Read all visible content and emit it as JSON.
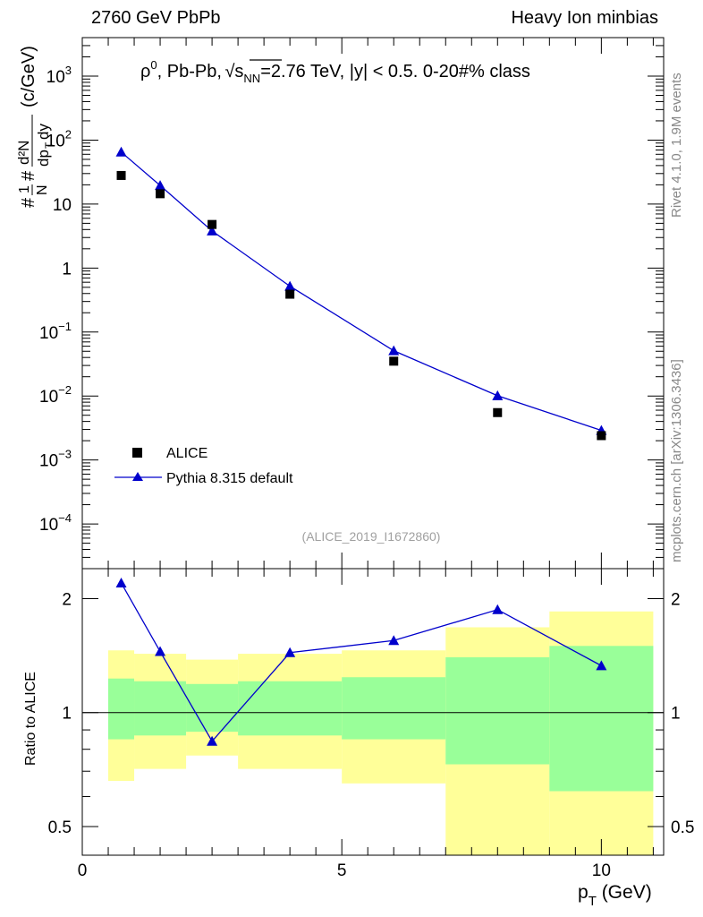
{
  "header": {
    "left": "2760 GeV PbPb",
    "right": "Heavy Ion minbias"
  },
  "side": {
    "rivet": "Rivet 4.1.0,  1.9M events",
    "mcplots": "mcplots.cern.ch [arXiv:1306.3436]"
  },
  "plot": {
    "title_pre": "ρ",
    "title_sup": "0",
    "title_mid": ", Pb-Pb, ",
    "title_root": "s",
    "title_sub": "NN",
    "title_post": "=2.76 TeV, |y| < 0.5. 0-20#% class",
    "ylabel": "#1/N # d²N/dp_T dy (c/GeV)",
    "ylabel_a": "#",
    "ylabel_b": "1",
    "ylabel_c": "N",
    "ylabel_d": "#",
    "ylabel_e": "d²N",
    "ylabel_f": "dp",
    "ylabel_g": "T",
    "ylabel_h": "dy",
    "ylabel_i": "(c/GeV)",
    "analysis_id": "(ALICE_2019_I1672860)",
    "ratio_ylabel": "Ratio to ALICE",
    "xlabel_main": "p",
    "xlabel_sub": "T",
    "xlabel_unit": " (GeV)"
  },
  "legend": {
    "data_label": "ALICE",
    "mc_label": "Pythia 8.315 default"
  },
  "colors": {
    "data": "#000000",
    "mc": "#0000cc",
    "band_inner": "#99ff99",
    "band_outer": "#ffff99",
    "side_text": "#888888"
  },
  "chart_data": [
    {
      "type": "scatter",
      "title": "ρ0, Pb-Pb, √sNN=2.76 TeV, |y| < 0.5. 0-20#% class",
      "xlabel": "p_T (GeV)",
      "ylabel": "#1/N # d²N/dp_T dy (c/GeV)",
      "xlim": [
        0,
        11.2
      ],
      "ylim": [
        2e-05,
        4000
      ],
      "yscale": "log",
      "x_ticks": [
        "0",
        "5",
        "10"
      ],
      "y_ticks": [
        "10^-4",
        "10^-3",
        "10^-2",
        "10^-1",
        "1",
        "10",
        "10^2",
        "10^3"
      ],
      "series": [
        {
          "name": "ALICE",
          "marker": "square",
          "x": [
            0.75,
            1.5,
            2.5,
            4.0,
            6.0,
            8.0,
            10.0
          ],
          "y": [
            28,
            14.5,
            4.8,
            0.39,
            0.035,
            0.0055,
            0.0024
          ]
        },
        {
          "name": "Pythia 8.315 default",
          "marker": "triangle",
          "line": true,
          "x": [
            0.75,
            1.5,
            2.5,
            4.0,
            6.0,
            8.0,
            10.0
          ],
          "y": [
            65,
            19.5,
            3.8,
            0.52,
            0.051,
            0.0101,
            0.0029
          ]
        }
      ]
    },
    {
      "type": "line",
      "title": "Ratio to ALICE",
      "xlabel": "p_T (GeV)",
      "ylabel": "Ratio to ALICE",
      "xlim": [
        0,
        11.2
      ],
      "ylim": [
        0.42,
        2.4
      ],
      "yscale": "log",
      "y_ticks": [
        "0.5",
        "1",
        "2"
      ],
      "reference_line": 1,
      "bands": {
        "bin_edges": [
          0.5,
          1.0,
          2.0,
          3.0,
          5.0,
          7.0,
          9.0,
          11.0
        ],
        "inner_low": [
          0.85,
          0.87,
          0.89,
          0.87,
          0.85,
          0.73,
          0.62
        ],
        "inner_high": [
          1.23,
          1.21,
          1.19,
          1.21,
          1.24,
          1.4,
          1.5
        ],
        "outer_low": [
          0.66,
          0.71,
          0.77,
          0.71,
          0.65,
          0.4,
          0.4
        ],
        "outer_high": [
          1.46,
          1.43,
          1.38,
          1.43,
          1.46,
          1.68,
          1.85
        ]
      },
      "series": [
        {
          "name": "Pythia 8.315 default",
          "x": [
            0.75,
            1.5,
            2.5,
            4.0,
            6.0,
            8.0,
            10.0
          ],
          "y": [
            2.2,
            1.45,
            0.84,
            1.44,
            1.55,
            1.87,
            1.33
          ]
        }
      ]
    }
  ]
}
